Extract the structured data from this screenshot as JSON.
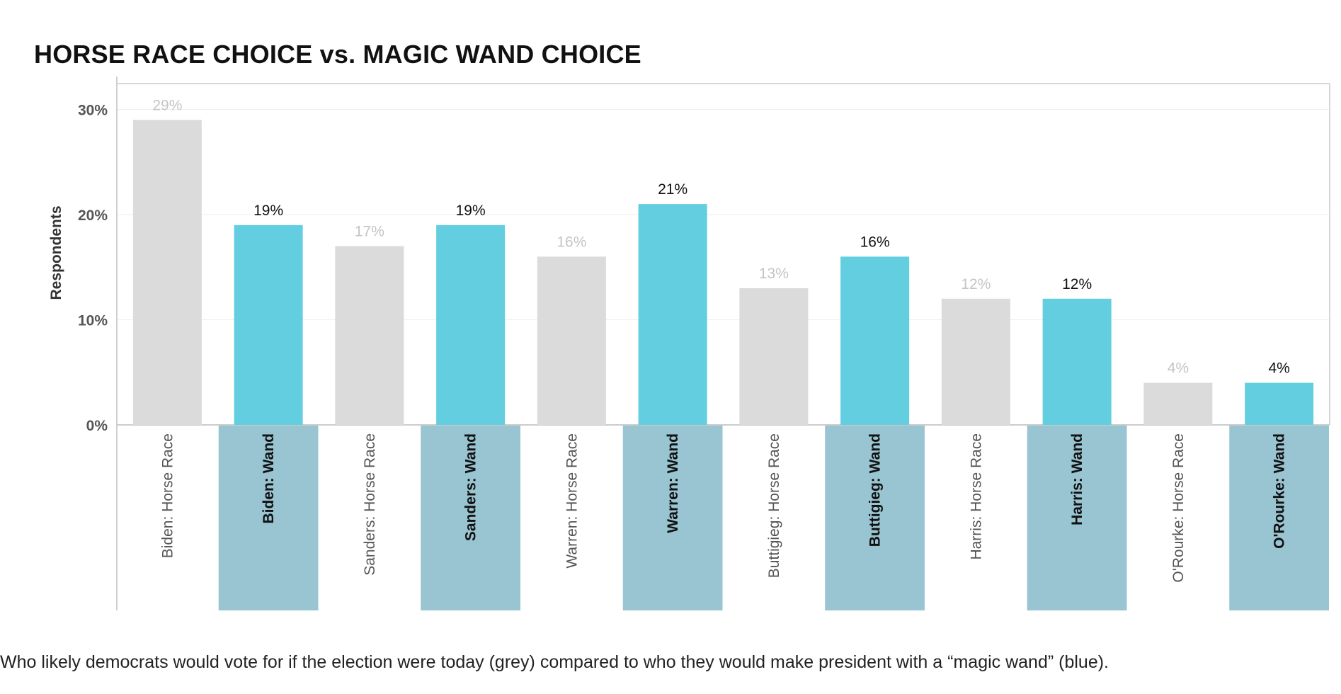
{
  "chart_data": {
    "type": "bar",
    "title": "HORSE RACE CHOICE vs. MAGIC WAND CHOICE",
    "ylabel": "Respondents",
    "xlabel": "",
    "ylim": [
      0,
      30
    ],
    "yticks": [
      "0%",
      "10%",
      "20%",
      "30%"
    ],
    "ytick_values": [
      0,
      10,
      20,
      30
    ],
    "grid": true,
    "categories": [
      "Biden: Horse Race",
      "Biden: Wand",
      "Sanders: Horse Race",
      "Sanders: Wand",
      "Warren: Horse Race",
      "Warren: Wand",
      "Buttigieg: Horse Race",
      "Buttigieg: Wand",
      "Harris: Horse Race",
      "Harris: Wand",
      "O'Rourke: Horse Race",
      "O'Rourke: Wand"
    ],
    "values": [
      29,
      19,
      17,
      19,
      16,
      21,
      13,
      16,
      12,
      12,
      4,
      4
    ],
    "value_labels": [
      "29%",
      "19%",
      "17%",
      "19%",
      "16%",
      "21%",
      "13%",
      "16%",
      "12%",
      "12%",
      "4%",
      "4%"
    ],
    "kinds": [
      "horse",
      "wand",
      "horse",
      "wand",
      "horse",
      "wand",
      "horse",
      "wand",
      "horse",
      "wand",
      "horse",
      "wand"
    ],
    "colors": {
      "horse_bar": "#dcdbdc",
      "wand_bar": "#63cee0",
      "wand_label_bg": "#99c4d1",
      "horse_value_text": "#c4c4c4",
      "wand_value_text": "#111111"
    }
  },
  "caption": "Who likely democrats would vote for if the election were today (grey) compared to who they would make president with a “magic wand” (blue)."
}
